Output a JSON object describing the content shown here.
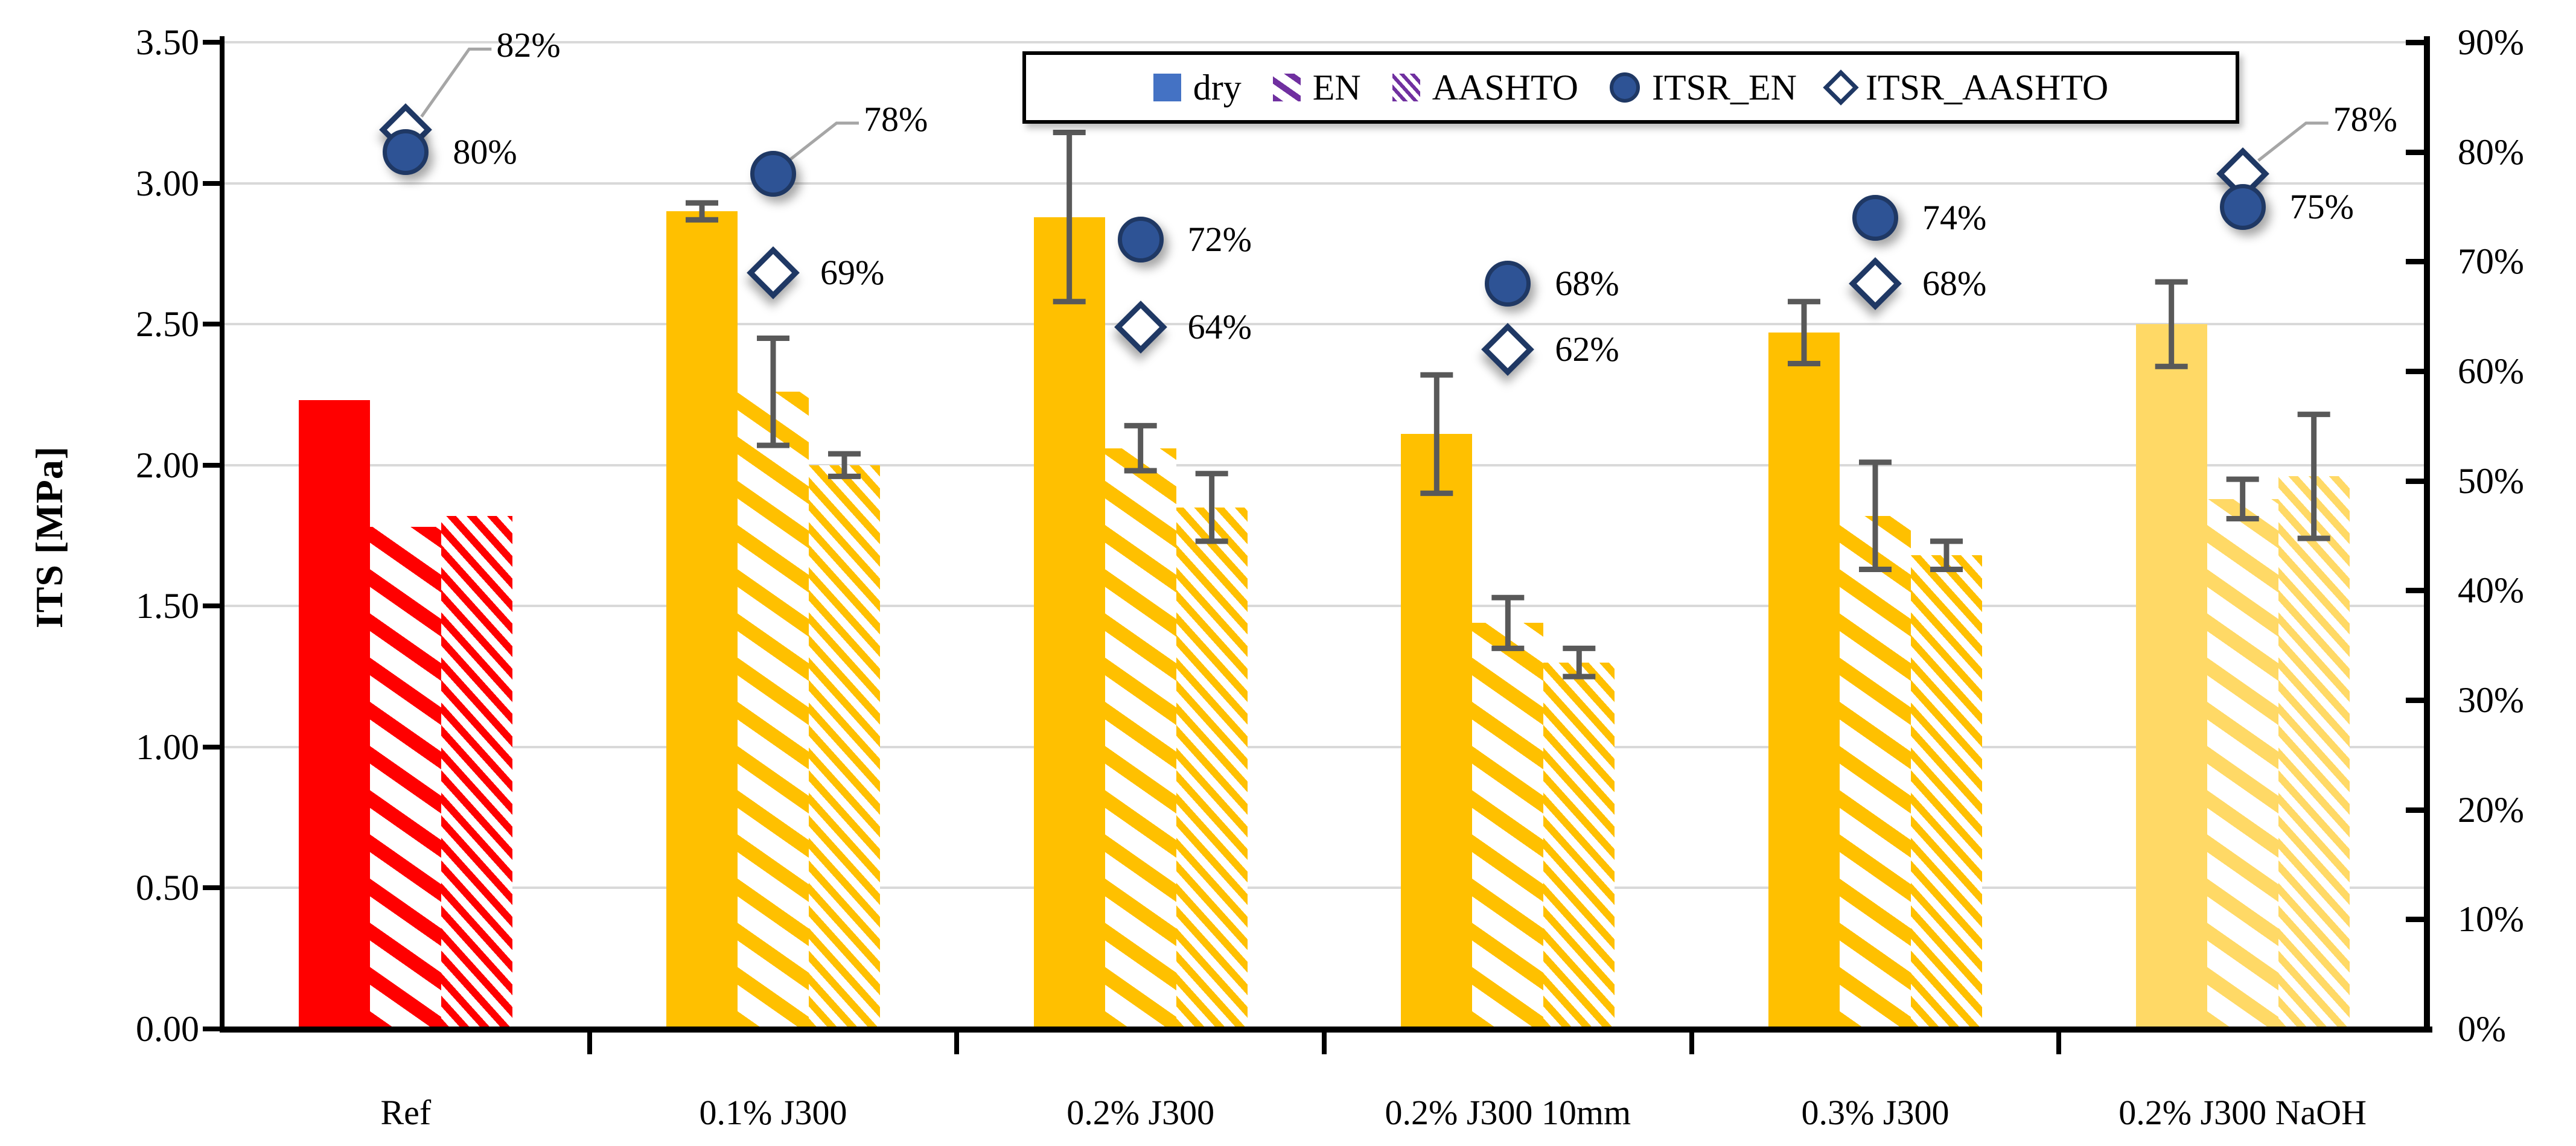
{
  "chart_data": {
    "type": "bar",
    "title": "",
    "categories": [
      "Ref",
      "0.1% J300",
      "0.2% J300",
      "0.2% J300 10mm",
      "0.3% J300",
      "0.2% J300 NaOH"
    ],
    "left_axis": {
      "label": "ITS [MPa]",
      "min": 0,
      "max": 3.5,
      "ticks": [
        "0.00",
        "0.50",
        "1.00",
        "1.50",
        "2.00",
        "2.50",
        "3.00",
        "3.50"
      ]
    },
    "right_axis": {
      "min": 0,
      "max": 90,
      "ticks": [
        "0%",
        "10%",
        "20%",
        "30%",
        "40%",
        "50%",
        "60%",
        "70%",
        "80%",
        "90%"
      ]
    },
    "grid": "horizontal-on",
    "legend_position": "top-center",
    "bar_series": [
      {
        "name": "dry",
        "pattern": "solid",
        "values": [
          2.23,
          2.9,
          2.88,
          2.11,
          2.47,
          2.5
        ],
        "errors": [
          0,
          0.03,
          0.3,
          0.21,
          0.11,
          0.15
        ]
      },
      {
        "name": "EN",
        "pattern": "hatch-wide",
        "values": [
          1.78,
          2.26,
          2.06,
          1.44,
          1.82,
          1.88
        ],
        "errors": [
          0,
          0.19,
          0.08,
          0.09,
          0.19,
          0.07
        ]
      },
      {
        "name": "AASHTO",
        "pattern": "hatch-dense",
        "values": [
          1.82,
          2.0,
          1.85,
          1.3,
          1.68,
          1.96
        ],
        "errors": [
          0,
          0.04,
          0.12,
          0.05,
          0.05,
          0.22
        ]
      }
    ],
    "marker_series": [
      {
        "name": "ITSR_EN",
        "marker": "circle",
        "unit": "%",
        "values": [
          80,
          78,
          72,
          68,
          74,
          75
        ],
        "labels": [
          "80%",
          "78%",
          "72%",
          "68%",
          "74%",
          "75%"
        ],
        "label_pos": [
          "right",
          "leader",
          "right",
          "right",
          "right",
          "right"
        ],
        "leader_dy": [
          0,
          -90,
          0,
          0,
          0,
          0
        ]
      },
      {
        "name": "ITSR_AASHTO",
        "marker": "diamond",
        "unit": "%",
        "values": [
          82,
          69,
          64,
          62,
          68,
          78
        ],
        "labels": [
          "82%",
          "69%",
          "64%",
          "62%",
          "68%",
          "78%"
        ],
        "label_pos": [
          "leader",
          "right",
          "right",
          "right",
          "right",
          "leader"
        ],
        "leader_dy": [
          -140,
          0,
          0,
          0,
          0,
          -90
        ]
      }
    ],
    "group_fill": [
      "#FF0000",
      "#FFC000",
      "#FFC000",
      "#FFC000",
      "#FFC000",
      "#FFD966"
    ],
    "legend": {
      "items": [
        {
          "label": "dry",
          "swatch": "square"
        },
        {
          "label": "EN",
          "swatch": "hatch-wide"
        },
        {
          "label": "AASHTO",
          "swatch": "hatch-dense"
        },
        {
          "label": "ITSR_EN",
          "swatch": "circle"
        },
        {
          "label": "ITSR_AASHTO",
          "swatch": "diamond"
        }
      ]
    },
    "colors": {
      "red": "#FF0000",
      "gold": "#FFC000",
      "gold_light": "#FFD966",
      "legend_blue": "#4472C4",
      "legend_purple": "#7030A0",
      "marker_fill": "#2E5395",
      "marker_stroke": "#1F3864",
      "error_bar": "#595959",
      "gridline": "#D9D9D9",
      "leader_line": "#A6A6A6",
      "axis": "#000000"
    }
  }
}
